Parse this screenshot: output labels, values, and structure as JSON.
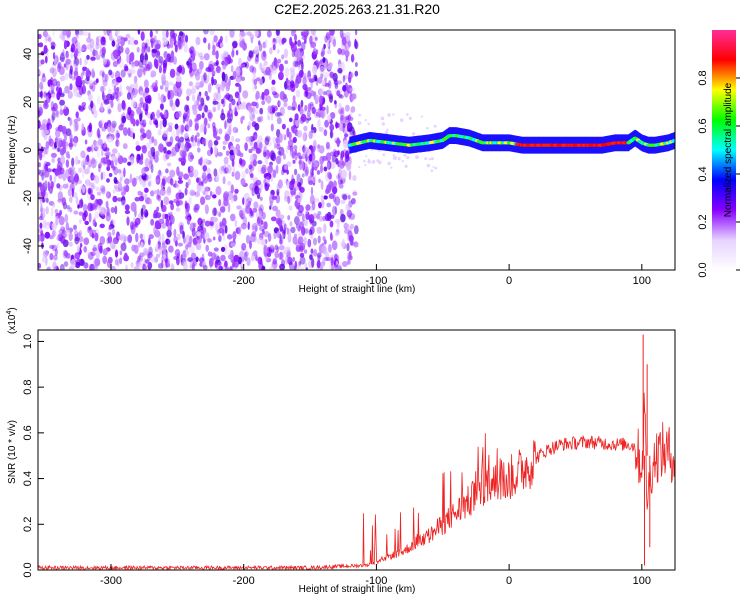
{
  "title": "C2E2.2025.263.21.31.R20",
  "chart_data": [
    {
      "type": "heatmap",
      "panel": "top",
      "xlabel": "Height of straight line (km)",
      "ylabel": "Frequency (Hz)",
      "xlim": [
        -355,
        125
      ],
      "ylim": [
        -50,
        50
      ],
      "xticks": [
        -300,
        -200,
        -100,
        0,
        100
      ],
      "yticks": [
        40,
        20,
        0,
        -20,
        -40
      ],
      "noise_region_x": [
        -355,
        -115
      ],
      "signal_track": {
        "x": [
          -120,
          -105,
          -90,
          -75,
          -60,
          -50,
          -45,
          -40,
          -30,
          -20,
          -10,
          0,
          10,
          20,
          30,
          40,
          50,
          60,
          70,
          80,
          90,
          95,
          100,
          105,
          110,
          120,
          125
        ],
        "freq": [
          2,
          4,
          3,
          2,
          3,
          4,
          6,
          6,
          5,
          3,
          3,
          3,
          2,
          2,
          2,
          2,
          2,
          2,
          2,
          3,
          3,
          5,
          3,
          2,
          2,
          3,
          4
        ]
      },
      "colorbar": {
        "label": "Normalized spectral amplitude",
        "range": [
          0.0,
          1.0
        ],
        "ticks": [
          "0.0",
          "0.2",
          "0.4",
          "0.6",
          "0.8"
        ],
        "tick_values": [
          0.0,
          0.2,
          0.4,
          0.6,
          0.8
        ],
        "colors": [
          "#ffffff",
          "#e6d2ff",
          "#8800ff",
          "#0000ff",
          "#00ffff",
          "#00ff00",
          "#ffff00",
          "#ff0000",
          "#ff2d9a"
        ]
      }
    },
    {
      "type": "line",
      "panel": "bottom",
      "series_color": "#ee2222",
      "xlabel": "Height of straight line (km)",
      "ylabel": "SNR (10 * v/v)",
      "scale_label": "(x10",
      "scale_exp": "4",
      "xlim": [
        -355,
        125
      ],
      "ylim": [
        0,
        1.05
      ],
      "xticks": [
        -300,
        -200,
        -100,
        0,
        100
      ],
      "yticks": [
        0.0,
        0.2,
        0.4,
        0.6,
        0.8,
        1.0
      ],
      "envelope": {
        "x": [
          -355,
          -150,
          -110,
          -100,
          -90,
          -80,
          -70,
          -60,
          -50,
          -40,
          -30,
          -20,
          -10,
          0,
          10,
          20,
          30,
          40,
          60,
          80,
          90,
          95,
          100,
          102,
          104,
          106,
          110,
          115,
          125
        ],
        "y": [
          0.01,
          0.01,
          0.02,
          0.03,
          0.06,
          0.08,
          0.12,
          0.15,
          0.2,
          0.25,
          0.3,
          0.35,
          0.38,
          0.4,
          0.44,
          0.49,
          0.53,
          0.55,
          0.56,
          0.55,
          0.55,
          0.54,
          0.45,
          0.7,
          0.3,
          0.4,
          0.5,
          0.52,
          0.5
        ]
      },
      "spikes": [
        {
          "x": 101,
          "y": 1.03
        },
        {
          "x": 102,
          "y": 0.02
        },
        {
          "x": 104,
          "y": 0.9
        },
        {
          "x": 106,
          "y": 0.1
        }
      ]
    }
  ]
}
